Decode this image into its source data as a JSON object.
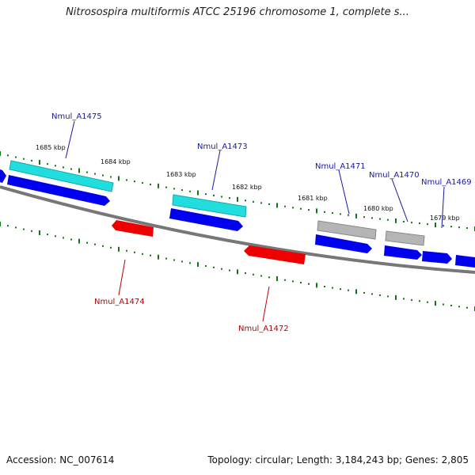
{
  "header": {
    "title": "Nitrosospira multiformis ATCC 25196 chromosome 1, complete s..."
  },
  "footer": {
    "accession": "Accession: NC_007614",
    "topology": "Topology: circular; Length: 3,184,243 bp; Genes: 2,805"
  },
  "colors": {
    "forward_cds": "#0000ee",
    "reverse_cds": "#ee0000",
    "forward_highlight": "#22dddd",
    "gray_feature": "#a8a8a8",
    "backbone": "#777777",
    "ticks": "#117711",
    "forward_label": "#1a1aa0",
    "reverse_label": "#c00000"
  },
  "scale_labels": [
    "1685 kbp",
    "1684 kbp",
    "1683 kbp",
    "1682 kbp",
    "1681 kbp",
    "1680 kbp",
    "1679 kbp"
  ],
  "gene_labels": {
    "forward": [
      "Nmul_A1475",
      "Nmul_A1473",
      "Nmul_A1471",
      "Nmul_A1470",
      "Nmul_A1469"
    ],
    "reverse": [
      "Nmul_A1474",
      "Nmul_A1472"
    ]
  }
}
